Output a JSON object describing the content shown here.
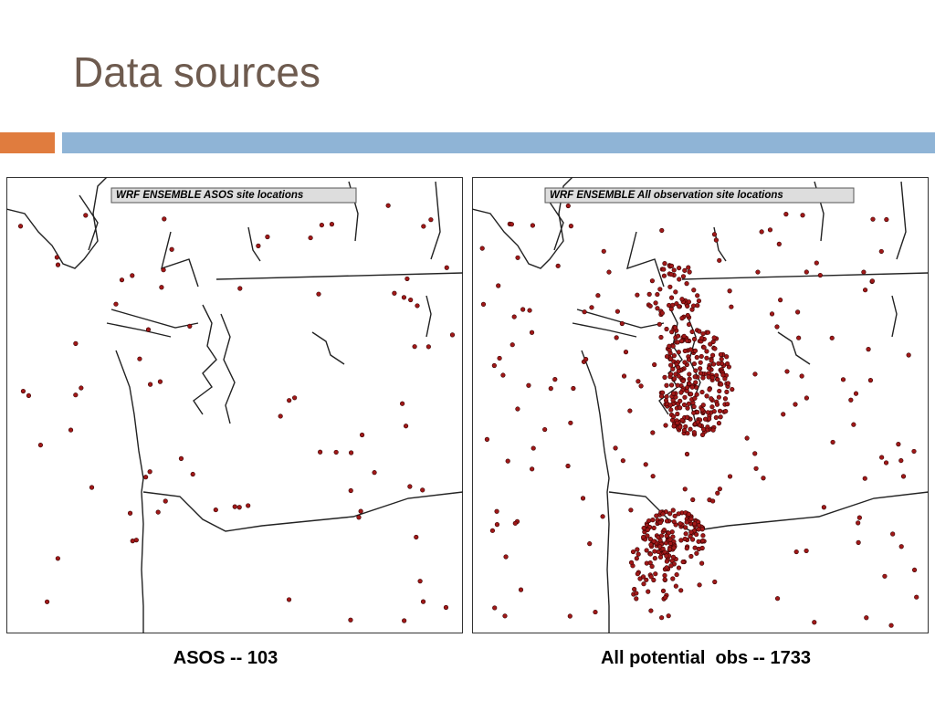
{
  "header": {
    "title": "Data sources"
  },
  "maps": [
    {
      "label": "WRF ENSEMBLE ASOS site locations",
      "caption": "ASOS -- 103"
    },
    {
      "label": "WRF ENSEMBLE All observation site locations",
      "caption": "All potential  obs -- 1733"
    }
  ]
}
